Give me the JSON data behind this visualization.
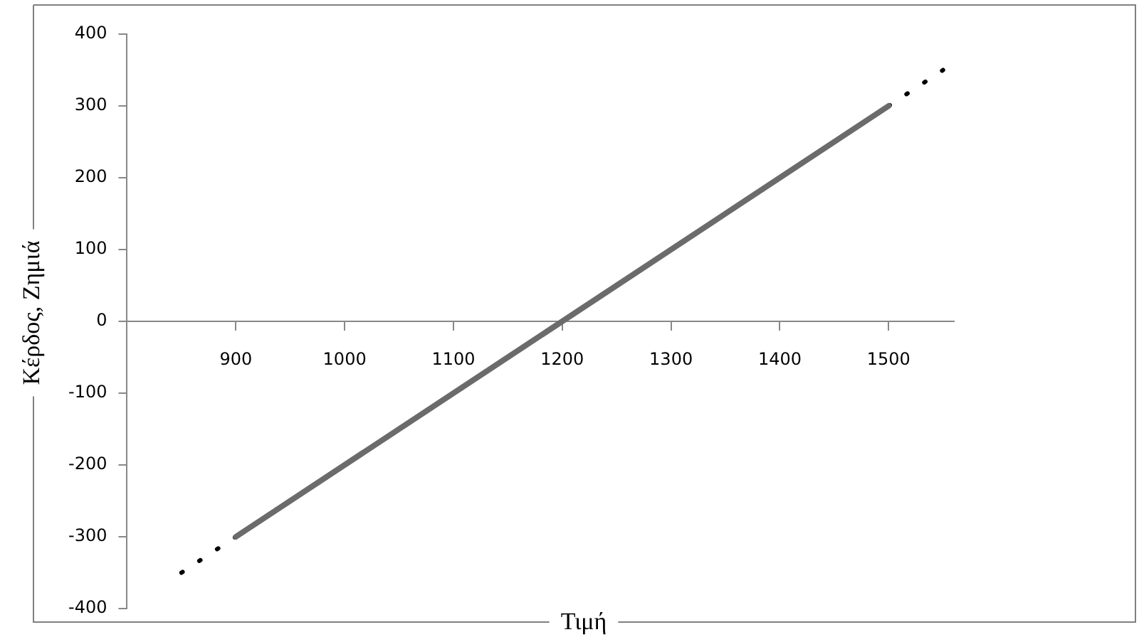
{
  "chart_data": {
    "type": "line",
    "xlabel": "Τιμή",
    "ylabel": "Κέρδος, Ζημιά",
    "x": [
      900,
      1500
    ],
    "series": [
      {
        "color": "#6b6b6b",
        "values": [
          -300,
          300
        ],
        "line_style": "solid"
      },
      {
        "color": "#000000",
        "x": [
          850,
          900
        ],
        "values": [
          -350,
          -300
        ],
        "line_style": "dotted"
      },
      {
        "color": "#000000",
        "x": [
          1500,
          1550
        ],
        "values": [
          300,
          350
        ],
        "line_style": "dotted"
      }
    ],
    "xlim": [
      800,
      1560
    ],
    "xticks": [
      {
        "value": 800,
        "label": null
      },
      900,
      1000,
      1100,
      1200,
      1300,
      1400,
      1500
    ],
    "ylim": [
      -400,
      400
    ],
    "yticks": [
      -400,
      -300,
      -200,
      -100,
      0,
      100,
      200,
      300,
      400
    ],
    "grid": false,
    "legend": false,
    "marker": "none"
  }
}
